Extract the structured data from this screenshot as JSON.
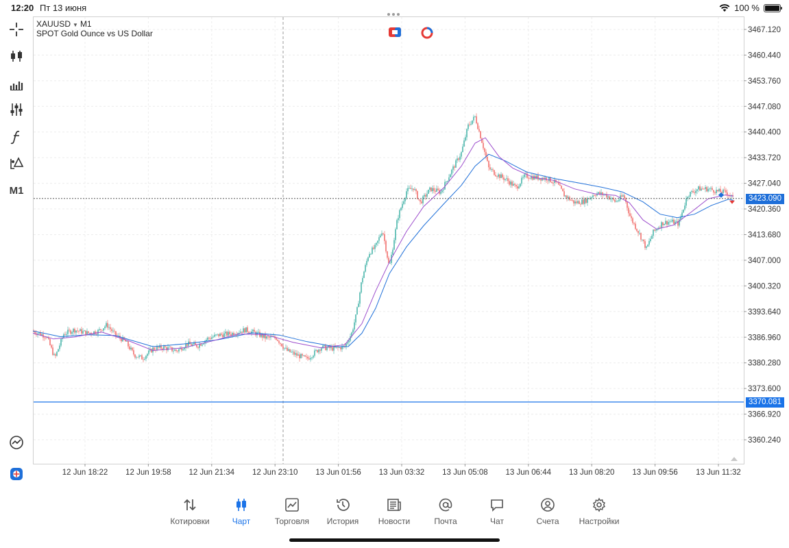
{
  "status_bar": {
    "time": "12:20",
    "date": "Пт 13 июня",
    "battery": "100 %"
  },
  "toolbar": {
    "items": [
      {
        "icon": "crosshair-icon"
      },
      {
        "icon": "candlestick-icon"
      },
      {
        "icon": "volume-bars-icon"
      },
      {
        "icon": "indicators-sliders-icon"
      },
      {
        "icon": "function-icon"
      },
      {
        "icon": "objects-icon"
      },
      {
        "label": "M1"
      }
    ],
    "bottom_items": [
      {
        "icon": "analysis-chart-icon"
      },
      {
        "icon": "signal-app-icon"
      }
    ]
  },
  "chart": {
    "symbol": "XAUUSD",
    "timeframe": "M1",
    "description": "SPOT Gold Ounce vs US Dollar",
    "current_price": "3423.090",
    "level_price": "3370.081",
    "colors": {
      "bid_line": "#555555",
      "level_line": "#1a73e8",
      "bull": "#26a69a",
      "bear": "#ef5350",
      "ma_fast": "#9c4dcc",
      "ma_slow": "#1e6fd9"
    }
  },
  "chart_data": {
    "type": "candlestick",
    "y_ticks": [
      "3467.120",
      "3460.440",
      "3453.760",
      "3447.080",
      "3440.400",
      "3433.720",
      "3427.040",
      "3420.360",
      "3413.680",
      "3407.000",
      "3400.320",
      "3393.640",
      "3386.960",
      "3380.280",
      "3373.600",
      "3366.920",
      "3360.240"
    ],
    "x_ticks": [
      "12 Jun 18:22",
      "12 Jun 19:58",
      "12 Jun 21:34",
      "12 Jun 23:10",
      "13 Jun 01:56",
      "13 Jun 03:32",
      "13 Jun 05:08",
      "13 Jun 06:44",
      "13 Jun 08:20",
      "13 Jun 09:56",
      "13 Jun 11:32"
    ],
    "ylim": [
      3354.0,
      3470.5
    ],
    "price_path": [
      [
        0,
        3388.5
      ],
      [
        20,
        3387.2
      ],
      [
        32,
        3381.5
      ],
      [
        45,
        3387.8
      ],
      [
        60,
        3388.9
      ],
      [
        80,
        3388.0
      ],
      [
        95,
        3388.5
      ],
      [
        108,
        3390.2
      ],
      [
        120,
        3387.6
      ],
      [
        135,
        3385.8
      ],
      [
        148,
        3382.3
      ],
      [
        160,
        3381.5
      ],
      [
        175,
        3383.9
      ],
      [
        190,
        3384.3
      ],
      [
        210,
        3383.4
      ],
      [
        225,
        3385.2
      ],
      [
        240,
        3384.7
      ],
      [
        255,
        3386.6
      ],
      [
        270,
        3387.5
      ],
      [
        290,
        3387.9
      ],
      [
        310,
        3388.9
      ],
      [
        325,
        3388.0
      ],
      [
        340,
        3386.8
      ],
      [
        355,
        3386.8
      ],
      [
        370,
        3383.5
      ],
      [
        385,
        3382.3
      ],
      [
        400,
        3381.3
      ],
      [
        420,
        3384.3
      ],
      [
        440,
        3384.0
      ],
      [
        455,
        3384.5
      ],
      [
        465,
        3388.0
      ],
      [
        472,
        3393.0
      ],
      [
        480,
        3402.0
      ],
      [
        490,
        3408.8
      ],
      [
        500,
        3410.5
      ],
      [
        510,
        3415.0
      ],
      [
        520,
        3405.0
      ],
      [
        532,
        3418.0
      ],
      [
        545,
        3425.0
      ],
      [
        555,
        3425.9
      ],
      [
        565,
        3422.0
      ],
      [
        580,
        3425.6
      ],
      [
        595,
        3424.7
      ],
      [
        610,
        3430.0
      ],
      [
        625,
        3435.0
      ],
      [
        635,
        3442.0
      ],
      [
        645,
        3444.4
      ],
      [
        655,
        3438.0
      ],
      [
        665,
        3431.0
      ],
      [
        675,
        3429.5
      ],
      [
        690,
        3428.1
      ],
      [
        705,
        3425.9
      ],
      [
        718,
        3429.0
      ],
      [
        735,
        3428.5
      ],
      [
        750,
        3428.3
      ],
      [
        765,
        3426.9
      ],
      [
        775,
        3424.0
      ],
      [
        790,
        3422.0
      ],
      [
        805,
        3422.4
      ],
      [
        820,
        3424.4
      ],
      [
        835,
        3424.1
      ],
      [
        850,
        3422.2
      ],
      [
        862,
        3423.9
      ],
      [
        872,
        3418.0
      ],
      [
        885,
        3413.8
      ],
      [
        895,
        3410.0
      ],
      [
        905,
        3414.3
      ],
      [
        918,
        3416.7
      ],
      [
        930,
        3417.1
      ],
      [
        942,
        3416.5
      ],
      [
        955,
        3424.0
      ],
      [
        970,
        3425.6
      ],
      [
        985,
        3425.6
      ],
      [
        1000,
        3424.9
      ],
      [
        1012,
        3424.7
      ],
      [
        1022,
        3423.09
      ]
    ],
    "ma_fast_path": [
      [
        0,
        3388.0
      ],
      [
        30,
        3386.5
      ],
      [
        60,
        3387.0
      ],
      [
        100,
        3388.3
      ],
      [
        140,
        3386.0
      ],
      [
        175,
        3383.5
      ],
      [
        220,
        3384.2
      ],
      [
        260,
        3385.9
      ],
      [
        300,
        3387.8
      ],
      [
        340,
        3387.6
      ],
      [
        380,
        3385.6
      ],
      [
        420,
        3384.2
      ],
      [
        455,
        3385.0
      ],
      [
        480,
        3390.5
      ],
      [
        500,
        3399.0
      ],
      [
        520,
        3406.5
      ],
      [
        545,
        3414.5
      ],
      [
        570,
        3421.0
      ],
      [
        600,
        3426.0
      ],
      [
        625,
        3431.5
      ],
      [
        645,
        3437.5
      ],
      [
        660,
        3438.9
      ],
      [
        680,
        3434.0
      ],
      [
        700,
        3431.0
      ],
      [
        730,
        3428.6
      ],
      [
        760,
        3427.8
      ],
      [
        790,
        3425.6
      ],
      [
        820,
        3424.3
      ],
      [
        850,
        3423.9
      ],
      [
        870,
        3422.0
      ],
      [
        890,
        3417.5
      ],
      [
        910,
        3415.1
      ],
      [
        935,
        3416.2
      ],
      [
        960,
        3419.5
      ],
      [
        985,
        3423.0
      ],
      [
        1010,
        3424.0
      ],
      [
        1022,
        3423.7
      ]
    ],
    "ma_slow_path": [
      [
        0,
        3388.6
      ],
      [
        40,
        3387.1
      ],
      [
        80,
        3387.6
      ],
      [
        120,
        3387.4
      ],
      [
        175,
        3384.5
      ],
      [
        220,
        3385.2
      ],
      [
        270,
        3386.3
      ],
      [
        320,
        3388.1
      ],
      [
        360,
        3387.5
      ],
      [
        400,
        3385.8
      ],
      [
        440,
        3384.5
      ],
      [
        460,
        3384.5
      ],
      [
        480,
        3388.0
      ],
      [
        500,
        3394.5
      ],
      [
        520,
        3403.5
      ],
      [
        545,
        3410.5
      ],
      [
        570,
        3416.0
      ],
      [
        600,
        3421.8
      ],
      [
        625,
        3426.5
      ],
      [
        645,
        3431.5
      ],
      [
        665,
        3434.6
      ],
      [
        690,
        3432.8
      ],
      [
        720,
        3430.0
      ],
      [
        760,
        3428.3
      ],
      [
        800,
        3427.0
      ],
      [
        830,
        3426.0
      ],
      [
        860,
        3424.8
      ],
      [
        890,
        3422.2
      ],
      [
        915,
        3419.0
      ],
      [
        940,
        3418.1
      ],
      [
        965,
        3419.0
      ],
      [
        990,
        3421.3
      ],
      [
        1015,
        3422.9
      ],
      [
        1022,
        3422.6
      ]
    ]
  },
  "tabbar": {
    "tabs": [
      {
        "label": "Котировки",
        "icon": "quotes-arrows-icon"
      },
      {
        "label": "Чарт",
        "icon": "chart-candles-icon",
        "active": true
      },
      {
        "label": "Торговля",
        "icon": "trade-icon"
      },
      {
        "label": "История",
        "icon": "history-clock-icon"
      },
      {
        "label": "Новости",
        "icon": "news-icon"
      },
      {
        "label": "Почта",
        "icon": "mail-at-icon"
      },
      {
        "label": "Чат",
        "icon": "chat-bubble-icon"
      },
      {
        "label": "Счета",
        "icon": "account-user-icon"
      },
      {
        "label": "Настройки",
        "icon": "settings-gear-icon"
      }
    ]
  }
}
